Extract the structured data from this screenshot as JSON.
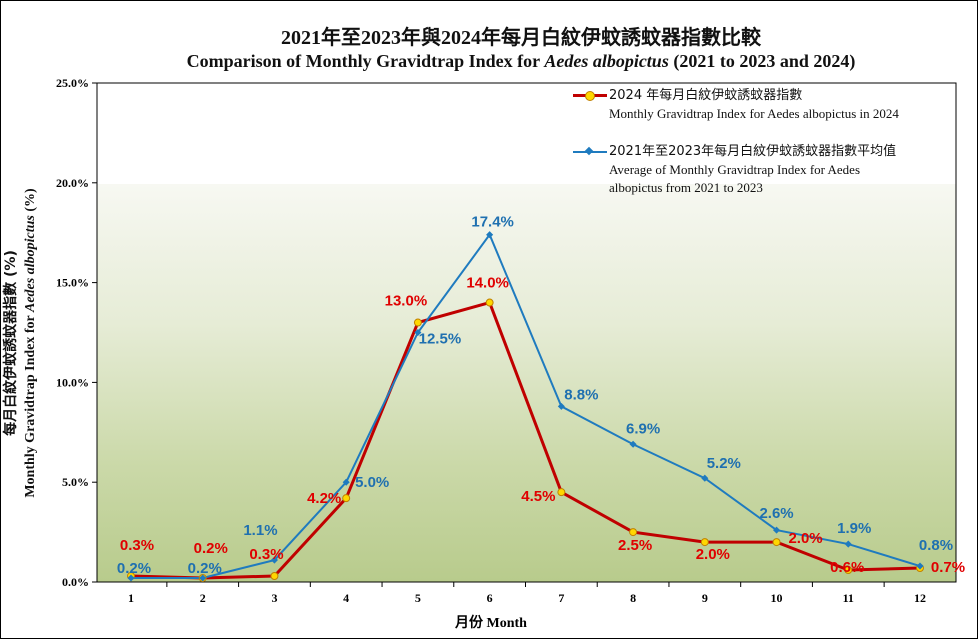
{
  "chart_data": {
    "type": "line",
    "title": "2021年至2023年與2024年每月白紋伊蚊誘蚊器指數比較",
    "subtitle_prefix": "Comparison  of Monthly  Gravidtrap  Index  for ",
    "subtitle_species": "Aedes albopictus",
    "subtitle_suffix": " (2021 to 2023 and 2024)",
    "xlabel": "月份 Month",
    "ylabel_zh": "每月白紋伊蚊誘蚊器指數 (%)",
    "ylabel_en_prefix": "Monthly  Gravidtrap  Index  for ",
    "ylabel_en_species": "Aedes albopictus",
    "ylabel_en_suffix": " (%)",
    "categories": [
      "1",
      "2",
      "3",
      "4",
      "5",
      "6",
      "7",
      "8",
      "9",
      "10",
      "11",
      "12"
    ],
    "ylim": [
      0,
      25
    ],
    "yticks": [
      "0.0%",
      "5.0%",
      "10.0%",
      "15.0%",
      "20.0%",
      "25.0%"
    ],
    "grid": false,
    "legend_position": "top-right",
    "series": [
      {
        "name_zh": "2024 年每月白紋伊蚊誘蚊器指數",
        "name_en": "Monthly  Gravidtrap  Index  for Aedes albopictus in 2024",
        "color": "#c00000",
        "marker_color": "#ffd700",
        "values": [
          0.3,
          0.2,
          0.3,
          4.2,
          13.0,
          14.0,
          4.5,
          2.5,
          2.0,
          2.0,
          0.6,
          0.7
        ],
        "labels": [
          "0.3%",
          "0.2%",
          "0.3%",
          "4.2%",
          "13.0%",
          "14.0%",
          "4.5%",
          "2.5%",
          "2.0%",
          "2.0%",
          "0.6%",
          "0.7%"
        ],
        "label_color": "#e00000"
      },
      {
        "name_zh": "2021年至2023年每月白紋伊蚊誘蚊器指數平均值",
        "name_en": "Average of Monthly  Gravidtrap  Index for Aedes albopictus  from 2021 to 2023",
        "color": "#1f7bbf",
        "values": [
          0.2,
          0.2,
          1.1,
          5.0,
          12.5,
          17.4,
          8.8,
          6.9,
          5.2,
          2.6,
          1.9,
          0.8
        ],
        "labels": [
          "0.2%",
          "0.2%",
          "1.1%",
          "5.0%",
          "12.5%",
          "17.4%",
          "8.8%",
          "6.9%",
          "5.2%",
          "2.6%",
          "1.9%",
          "0.8%"
        ],
        "label_color": "#1f70b0"
      }
    ]
  }
}
